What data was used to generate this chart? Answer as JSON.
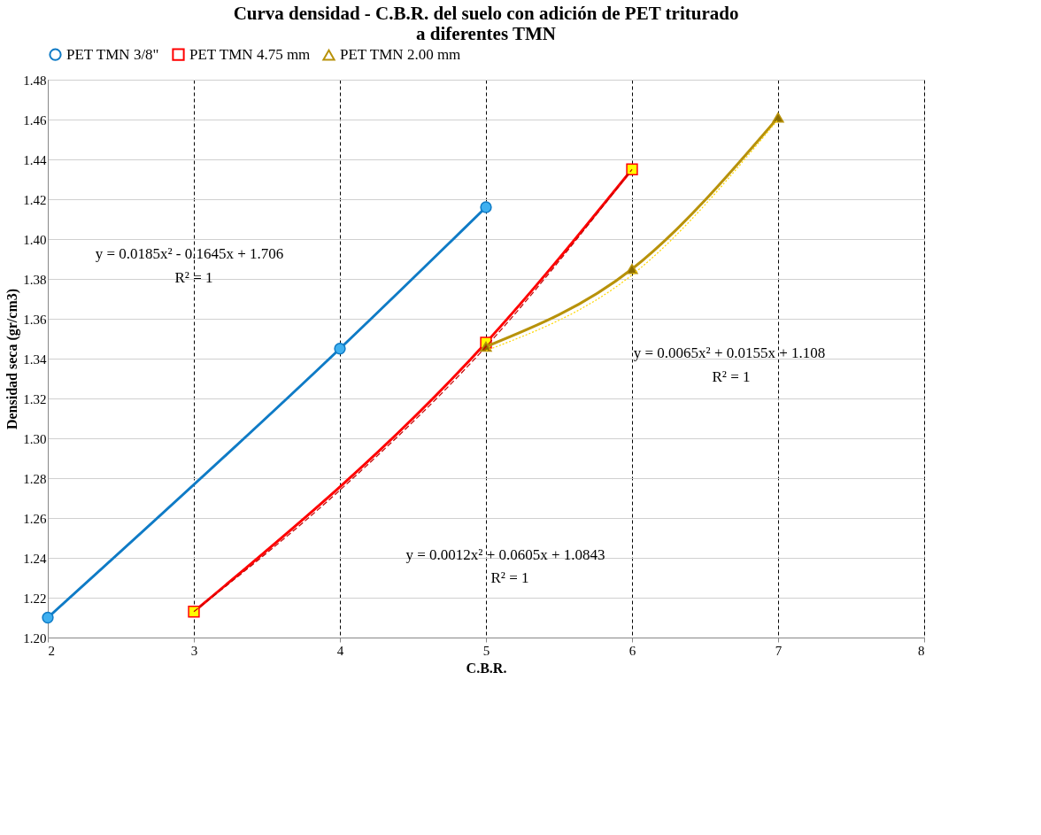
{
  "chart_data": {
    "type": "line",
    "title": "Curva densidad - C.B.R. del suelo con adición de PET triturado a diferentes TMN",
    "xlabel": "C.B.R.",
    "ylabel": "Densidad seca (gr/cm3)",
    "series": [
      {
        "name": "PET TMN 3/8\"",
        "color": "#0f7bc6",
        "marker": "circle",
        "x": [
          2,
          4,
          5
        ],
        "values": [
          1.21,
          1.345,
          1.416
        ]
      },
      {
        "name": "PET TMN 4.75 mm",
        "color": "#ff0000",
        "marker": "square",
        "x": [
          3,
          5,
          6
        ],
        "values": [
          1.213,
          1.348,
          1.435
        ]
      },
      {
        "name": "PET TMN 2.00 mm",
        "color": "#b8920a",
        "marker": "triangle",
        "x": [
          5,
          6,
          7
        ],
        "values": [
          1.346,
          1.385,
          1.461
        ]
      },
      {
        "type": "line",
        "color": "#c00000",
        "line_style": "dashed",
        "marker": "none",
        "x": [
          3,
          4,
          5,
          6
        ],
        "values": [
          1.213,
          1.274,
          1.346,
          1.435
        ]
      },
      {
        "type": "line",
        "color": "#ffd700",
        "line_style": "dotted",
        "marker": "none",
        "x": [
          5,
          6,
          7
        ],
        "values": [
          1.344,
          1.382,
          1.46
        ]
      }
    ],
    "xlim": [
      2,
      8
    ],
    "xticks": [
      2,
      3,
      4,
      5,
      6,
      7,
      8
    ],
    "ylim": [
      1.2,
      1.48
    ],
    "yticks": [
      {
        "value": 1.2,
        "label": "1.20"
      },
      1.22,
      1.24,
      1.26,
      1.28,
      {
        "value": 1.3,
        "label": "1.30"
      },
      1.32,
      1.34,
      1.36,
      1.38,
      {
        "value": 1.4,
        "label": "1.40"
      },
      1.42,
      1.44,
      1.46,
      1.48
    ],
    "grid": true,
    "legend": "top",
    "line_style": "solid",
    "annotations": [
      "y = 0.0185x² - 0.1645x + 1.706",
      "R² = 1",
      "y = 0.0012x² + 0.0605x + 1.0843",
      "R² = 1",
      "y = 0.0065x² + 0.0155x + 1.108",
      "R² = 1"
    ]
  }
}
